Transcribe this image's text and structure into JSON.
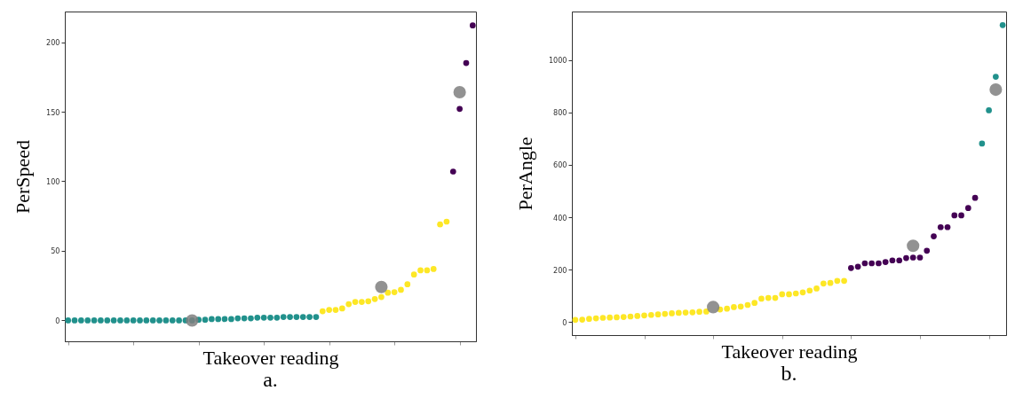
{
  "chart_data": [
    {
      "type": "scatter",
      "title": "a.",
      "xlabel": "Takeover reading",
      "ylabel": "PerSpeed",
      "categories": [
        null,
        null,
        null,
        null,
        null,
        null,
        null,
        null,
        null,
        null,
        null,
        null,
        null,
        null,
        null,
        null,
        null,
        null,
        null,
        null,
        null,
        null,
        null,
        null,
        null,
        null,
        null,
        null,
        null,
        null,
        null,
        null,
        null,
        null,
        null,
        null,
        null,
        null,
        null,
        null,
        null,
        null,
        null,
        null,
        null,
        null,
        null,
        null,
        null,
        null,
        null,
        null,
        null,
        null,
        null,
        null,
        null,
        null,
        null,
        null,
        null,
        null,
        null
      ],
      "ylim": [
        -15,
        222
      ],
      "yticks": [
        0,
        50,
        100,
        150,
        200
      ],
      "tick_labels": "y",
      "grid": false,
      "legend": false,
      "marker": "circle",
      "series": [
        {
          "color": "#21918c",
          "values": [
            0,
            0,
            0,
            0,
            0,
            0,
            0,
            0,
            0,
            0,
            0,
            0,
            0,
            0,
            0,
            0,
            0,
            0,
            0,
            0,
            0.5,
            0.5,
            1,
            1,
            1,
            1,
            1.5,
            1.5,
            1.5,
            2,
            2,
            2,
            2,
            2.5,
            2.5,
            2.5,
            2.5,
            2.5,
            2.5,
            null,
            null,
            null,
            null,
            null,
            null,
            null,
            null,
            null,
            null,
            null,
            null,
            null,
            null,
            null,
            null,
            null,
            null,
            null,
            null,
            null,
            null,
            null,
            null
          ]
        },
        {
          "color": "#fde725",
          "values": [
            null,
            null,
            null,
            null,
            null,
            null,
            null,
            null,
            null,
            null,
            null,
            null,
            null,
            null,
            null,
            null,
            null,
            null,
            null,
            null,
            null,
            null,
            null,
            null,
            null,
            null,
            null,
            null,
            null,
            null,
            null,
            null,
            null,
            null,
            null,
            null,
            null,
            null,
            null,
            6.6,
            7.6,
            7.6,
            8.6,
            11.7,
            13.3,
            13.3,
            13.8,
            15.4,
            16.8,
            19.9,
            20.3,
            22,
            26,
            33,
            36,
            36,
            37,
            69,
            71,
            null,
            null,
            null,
            null
          ]
        },
        {
          "color": "#440154",
          "values": [
            null,
            null,
            null,
            null,
            null,
            null,
            null,
            null,
            null,
            null,
            null,
            null,
            null,
            null,
            null,
            null,
            null,
            null,
            null,
            null,
            null,
            null,
            null,
            null,
            null,
            null,
            null,
            null,
            null,
            null,
            null,
            null,
            null,
            null,
            null,
            null,
            null,
            null,
            null,
            null,
            null,
            null,
            null,
            null,
            null,
            null,
            null,
            null,
            null,
            null,
            null,
            null,
            null,
            null,
            null,
            null,
            null,
            null,
            null,
            107,
            152,
            185,
            212
          ]
        },
        {
          "color": "#7f7f7f",
          "values": [
            null,
            null,
            null,
            null,
            null,
            null,
            null,
            null,
            null,
            null,
            null,
            null,
            null,
            null,
            null,
            null,
            null,
            null,
            null,
            0,
            null,
            null,
            null,
            null,
            null,
            null,
            null,
            null,
            null,
            null,
            null,
            null,
            null,
            null,
            null,
            null,
            null,
            null,
            null,
            null,
            null,
            null,
            null,
            null,
            null,
            null,
            null,
            null,
            24,
            null,
            null,
            null,
            null,
            null,
            null,
            null,
            null,
            null,
            null,
            null,
            164,
            null,
            null
          ]
        }
      ]
    },
    {
      "type": "scatter",
      "title": "b.",
      "xlabel": "Takeover reading",
      "ylabel": "PerAngle",
      "categories": [
        null,
        null,
        null,
        null,
        null,
        null,
        null,
        null,
        null,
        null,
        null,
        null,
        null,
        null,
        null,
        null,
        null,
        null,
        null,
        null,
        null,
        null,
        null,
        null,
        null,
        null,
        null,
        null,
        null,
        null,
        null,
        null,
        null,
        null,
        null,
        null,
        null,
        null,
        null,
        null,
        null,
        null,
        null,
        null,
        null,
        null,
        null,
        null,
        null,
        null,
        null,
        null,
        null,
        null,
        null,
        null,
        null,
        null,
        null,
        null,
        null,
        null,
        null
      ],
      "ylim": [
        -50,
        1185
      ],
      "yticks": [
        0,
        200,
        400,
        600,
        800,
        1000
      ],
      "tick_labels": "y",
      "grid": false,
      "legend": false,
      "marker": "circle",
      "series": [
        {
          "color": "#fde725",
          "values": [
            8,
            9,
            12,
            14,
            16,
            17,
            18,
            19,
            21,
            23,
            25,
            27,
            29,
            31,
            33,
            35,
            36,
            37,
            39,
            40,
            null,
            48,
            51,
            57,
            59,
            65,
            73,
            89,
            92,
            92,
            106,
            106,
            109,
            113,
            120,
            128,
            147,
            149,
            157,
            157,
            null,
            null,
            null,
            null,
            null,
            null,
            null,
            null,
            null,
            null,
            null,
            null,
            null,
            null,
            null,
            null,
            null,
            null,
            null,
            null,
            null,
            null,
            null
          ]
        },
        {
          "color": "#440154",
          "values": [
            null,
            null,
            null,
            null,
            null,
            null,
            null,
            null,
            null,
            null,
            null,
            null,
            null,
            null,
            null,
            null,
            null,
            null,
            null,
            null,
            null,
            null,
            null,
            null,
            null,
            null,
            null,
            null,
            null,
            null,
            null,
            null,
            null,
            null,
            null,
            null,
            null,
            null,
            null,
            null,
            206,
            211,
            224,
            224,
            224,
            229,
            235,
            235,
            244,
            246,
            246,
            272,
            327,
            362,
            362,
            407,
            407,
            435,
            474,
            null,
            null,
            null,
            null
          ]
        },
        {
          "color": "#21918c",
          "values": [
            null,
            null,
            null,
            null,
            null,
            null,
            null,
            null,
            null,
            null,
            null,
            null,
            null,
            null,
            null,
            null,
            null,
            null,
            null,
            null,
            null,
            null,
            null,
            null,
            null,
            null,
            null,
            null,
            null,
            null,
            null,
            null,
            null,
            null,
            null,
            null,
            null,
            null,
            null,
            null,
            null,
            null,
            null,
            null,
            null,
            null,
            null,
            null,
            null,
            null,
            null,
            null,
            null,
            null,
            null,
            null,
            null,
            null,
            null,
            681,
            808,
            936,
            1133
          ]
        },
        {
          "color": "#7f7f7f",
          "values": [
            null,
            null,
            null,
            null,
            null,
            null,
            null,
            null,
            null,
            null,
            null,
            null,
            null,
            null,
            null,
            null,
            null,
            null,
            null,
            null,
            57,
            null,
            null,
            null,
            null,
            null,
            null,
            null,
            null,
            null,
            null,
            null,
            null,
            null,
            null,
            null,
            null,
            null,
            null,
            null,
            null,
            null,
            null,
            null,
            null,
            null,
            null,
            null,
            null,
            291,
            null,
            null,
            null,
            null,
            null,
            null,
            null,
            null,
            null,
            null,
            null,
            887,
            null
          ]
        }
      ]
    }
  ]
}
